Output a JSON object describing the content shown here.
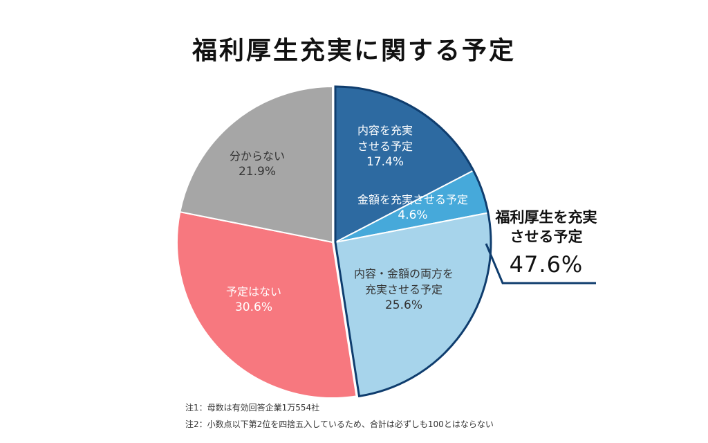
{
  "chart_data": {
    "type": "pie",
    "title": "福利厚生充実に関する予定",
    "start": "top",
    "direction": "clockwise",
    "slices": [
      {
        "label_lines": [
          "内容を充実",
          "させる予定"
        ],
        "value": 17.4,
        "value_label": "17.4%",
        "color": "#2d6aa1"
      },
      {
        "label_lines": [
          "金額を充実させる予定"
        ],
        "value": 4.6,
        "value_label": "4.6%",
        "color": "#46a9da"
      },
      {
        "label_lines": [
          "内容・金額の両方を",
          "充実させる予定"
        ],
        "value": 25.6,
        "value_label": "25.6%",
        "color": "#a7d4eb"
      },
      {
        "label_lines": [
          "予定はない"
        ],
        "value": 30.6,
        "value_label": "30.6%",
        "color": "#f7787f"
      },
      {
        "label_lines": [
          "分からない"
        ],
        "value": 21.9,
        "value_label": "21.9%",
        "color": "#a6a6a6"
      }
    ],
    "group_callout": {
      "label_lines": [
        "福利厚生を充実",
        "させる予定"
      ],
      "value": 47.6,
      "value_label": "47.6%",
      "includes_slices": [
        0,
        1,
        2
      ],
      "outline_color": "#0f3d6e"
    },
    "notes": [
      "注1：母数は有効回答企業1万554社",
      "注2：小数点以下第2位を四捨五入しているため、合計は必ずしも100とはならない"
    ]
  }
}
